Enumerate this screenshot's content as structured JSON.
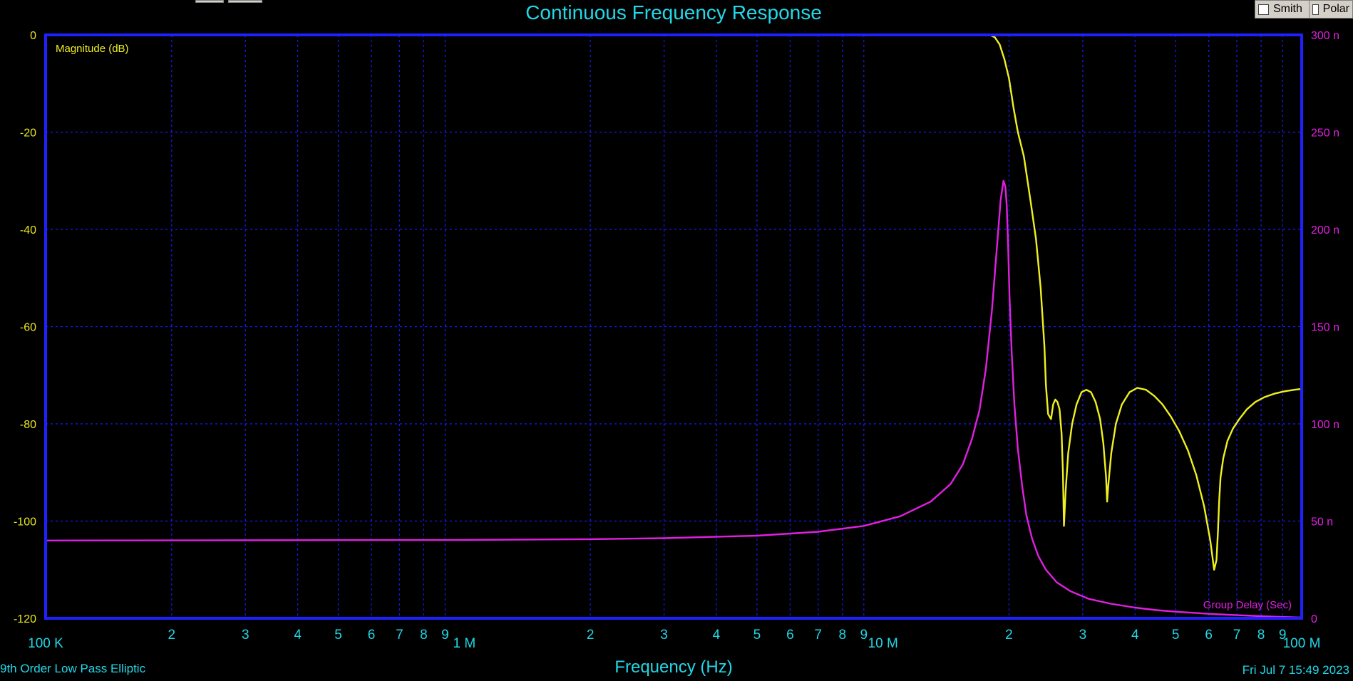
{
  "title": "Continuous Frequency Response",
  "x_axis_label": "Frequency (Hz)",
  "filter_name": "9th Order Low Pass Elliptic",
  "timestamp": "Fri Jul  7 15:49 2023",
  "controls": {
    "smith_label": "Smith",
    "polar_label": "Polar"
  },
  "colors": {
    "background": "#000000",
    "grid": "#1a1aff",
    "frame": "#1f1fff",
    "magnitude": "#f0f020",
    "group_delay": "#e020e0",
    "text": "#22d8e8"
  },
  "chart_data": {
    "type": "line",
    "title": "Continuous Frequency Response",
    "xlabel": "Frequency (Hz)",
    "xscale": "log",
    "xlim": [
      100000,
      100000000
    ],
    "x_major_ticks": [
      {
        "value": 100000,
        "label": "100 K"
      },
      {
        "value": 1000000,
        "label": "1 M"
      },
      {
        "value": 10000000,
        "label": "10 M"
      },
      {
        "value": 100000000,
        "label": "100 M"
      }
    ],
    "x_minor_labels": [
      "2",
      "3",
      "4",
      "5",
      "6",
      "7",
      "8",
      "9"
    ],
    "y_left": {
      "label": "Magnitude (dB)",
      "ylim": [
        -120,
        0
      ],
      "ticks": [
        {
          "value": 0,
          "label": "0"
        },
        {
          "value": -20,
          "label": "-20"
        },
        {
          "value": -40,
          "label": "-40"
        },
        {
          "value": -60,
          "label": "-60"
        },
        {
          "value": -80,
          "label": "-80"
        },
        {
          "value": -100,
          "label": "-100"
        },
        {
          "value": -120,
          "label": "-120"
        }
      ]
    },
    "y_right": {
      "label": "Group Delay (Sec)",
      "ylim": [
        0,
        3e-07
      ],
      "ticks": [
        {
          "value": 0,
          "label": "0"
        },
        {
          "value": 5e-08,
          "label": "50 n"
        },
        {
          "value": 1e-07,
          "label": "100 n"
        },
        {
          "value": 1.5e-07,
          "label": "150 n"
        },
        {
          "value": 2e-07,
          "label": "200 n"
        },
        {
          "value": 2.5e-07,
          "label": "250 n"
        },
        {
          "value": 3e-07,
          "label": "300 n"
        }
      ]
    },
    "grid": true,
    "series": [
      {
        "name": "Magnitude (dB)",
        "axis": "left",
        "x": [
          100000,
          1000000,
          10000000,
          18000000,
          18500000,
          19000000,
          19500000,
          20000000,
          20500000,
          21000000,
          21700000,
          22500000,
          23200000,
          23800000,
          24300000,
          24500000,
          24800000,
          25200000,
          25500000,
          25800000,
          26100000,
          26400000,
          26700000,
          26900000,
          27050000,
          27300000,
          27700000,
          28300000,
          29000000,
          29800000,
          30600000,
          31400000,
          32200000,
          33000000,
          33600000,
          34100000,
          34300000,
          34500000,
          35100000,
          36000000,
          37200000,
          38800000,
          40500000,
          42500000,
          44500000,
          46500000,
          48700000,
          51000000,
          53500000,
          56000000,
          58500000,
          60500000,
          61800000,
          62600000,
          63100000,
          63500000,
          64000000,
          65000000,
          66500000,
          68500000,
          71000000,
          74000000,
          77500000,
          81500000,
          86000000,
          91000000,
          96000000,
          100000000
        ],
        "values": [
          0,
          0,
          0,
          0,
          -0.5,
          -2,
          -5,
          -9,
          -15,
          -20,
          -25,
          -34,
          -42,
          -52,
          -64,
          -72,
          -78,
          -79,
          -76,
          -75,
          -75.5,
          -77,
          -82,
          -90,
          -101,
          -94,
          -86,
          -80,
          -76,
          -73.5,
          -73,
          -73.5,
          -75.5,
          -79,
          -84,
          -91,
          -96,
          -93,
          -86,
          -80,
          -76,
          -73.5,
          -72.6,
          -73,
          -74.3,
          -76,
          -78.5,
          -81.5,
          -85.5,
          -90.5,
          -97,
          -104,
          -110,
          -108,
          -102,
          -96,
          -91,
          -87,
          -83.5,
          -81,
          -79,
          -77,
          -75.5,
          -74.5,
          -73.8,
          -73.3,
          -73,
          -72.8
        ]
      },
      {
        "name": "Group Delay (Sec)",
        "axis": "right",
        "x": [
          100000,
          1000000,
          2000000,
          3000000,
          5000000,
          7000000,
          9000000,
          11000000,
          13000000,
          14500000,
          15500000,
          16300000,
          17000000,
          17600000,
          18200000,
          18700000,
          19100000,
          19400000,
          19600000,
          19750000,
          19900000,
          20050000,
          20300000,
          20600000,
          21000000,
          21500000,
          22000000,
          22700000,
          23500000,
          24500000,
          26000000,
          28000000,
          31000000,
          35000000,
          40000000,
          45000000,
          50000000,
          60000000,
          70000000,
          80000000,
          90000000,
          100000000
        ],
        "values": [
          4e-08,
          4.03e-08,
          4.07e-08,
          4.12e-08,
          4.25e-08,
          4.45e-08,
          4.75e-08,
          5.25e-08,
          6e-08,
          6.9e-08,
          7.9e-08,
          9.2e-08,
          1.07e-07,
          1.28e-07,
          1.58e-07,
          1.9e-07,
          2.15e-07,
          2.25e-07,
          2.22e-07,
          2.12e-07,
          1.92e-07,
          1.66e-07,
          1.36e-07,
          1.1e-07,
          8.7e-08,
          6.8e-08,
          5.3e-08,
          4.1e-08,
          3.2e-08,
          2.5e-08,
          1.85e-08,
          1.4e-08,
          1e-08,
          7.5e-09,
          5.5e-09,
          4.2e-09,
          3.4e-09,
          2.3e-09,
          1.6e-09,
          1.1e-09,
          7e-10,
          4e-10
        ]
      }
    ]
  }
}
